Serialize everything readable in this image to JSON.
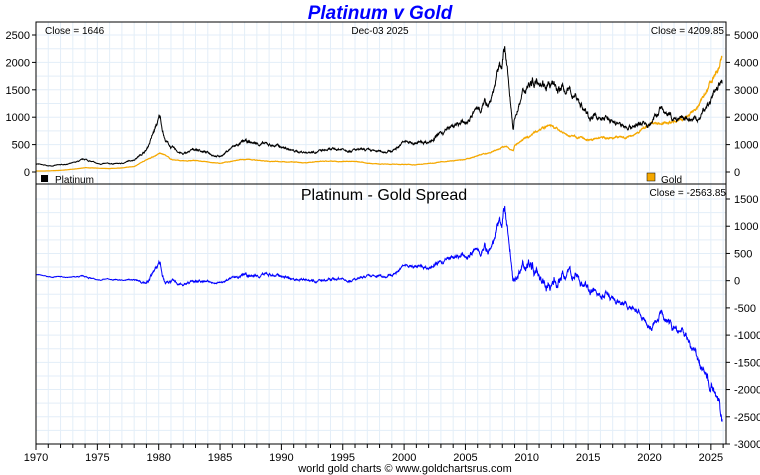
{
  "chart_data": [
    {
      "type": "line",
      "title": "Platinum v Gold",
      "date": "Dec-03  2025",
      "left_close": "Close = 1646",
      "right_close": "Close = 4209.85",
      "legend": [
        {
          "name": "Platinum",
          "color": "#000000"
        },
        {
          "name": "Gold",
          "color": "#f5a800"
        }
      ],
      "ylim_left": [
        0,
        2500
      ],
      "yticks_left": [
        0,
        500,
        1000,
        1500,
        2000,
        2500
      ],
      "ylim_right": [
        0,
        5000
      ],
      "yticks_right": [
        0,
        1000,
        2000,
        3000,
        4000,
        5000
      ],
      "series": [
        {
          "name": "Platinum",
          "axis": "left",
          "points": [
            [
              1970,
              150
            ],
            [
              1971,
              110
            ],
            [
              1972,
              130
            ],
            [
              1973,
              160
            ],
            [
              1974,
              230
            ],
            [
              1975,
              150
            ],
            [
              1976,
              150
            ],
            [
              1977,
              155
            ],
            [
              1978,
              230
            ],
            [
              1979,
              400
            ],
            [
              1980.1,
              1000
            ],
            [
              1980.5,
              600
            ],
            [
              1981,
              450
            ],
            [
              1982,
              320
            ],
            [
              1983,
              420
            ],
            [
              1984,
              350
            ],
            [
              1985,
              280
            ],
            [
              1986,
              450
            ],
            [
              1987,
              550
            ],
            [
              1988,
              520
            ],
            [
              1989,
              500
            ],
            [
              1990,
              460
            ],
            [
              1991,
              380
            ],
            [
              1992,
              360
            ],
            [
              1993,
              380
            ],
            [
              1994,
              400
            ],
            [
              1995,
              420
            ],
            [
              1996,
              400
            ],
            [
              1997,
              390
            ],
            [
              1998,
              370
            ],
            [
              1999,
              380
            ],
            [
              2000,
              550
            ],
            [
              2001,
              520
            ],
            [
              2002,
              560
            ],
            [
              2003,
              700
            ],
            [
              2004,
              830
            ],
            [
              2005,
              900
            ],
            [
              2006,
              1150
            ],
            [
              2007,
              1300
            ],
            [
              2008.2,
              2200
            ],
            [
              2008.9,
              800
            ],
            [
              2009,
              1000
            ],
            [
              2010,
              1600
            ],
            [
              2011,
              1750
            ],
            [
              2012,
              1550
            ],
            [
              2013,
              1500
            ],
            [
              2014,
              1400
            ],
            [
              2015,
              1000
            ],
            [
              2016,
              1000
            ],
            [
              2017,
              930
            ],
            [
              2018,
              820
            ],
            [
              2019,
              860
            ],
            [
              2020,
              880
            ],
            [
              2021,
              1150
            ],
            [
              2022,
              950
            ],
            [
              2023,
              950
            ],
            [
              2024,
              950
            ],
            [
              2025.92,
              1646
            ]
          ]
        },
        {
          "name": "Gold",
          "axis": "right",
          "points": [
            [
              1970,
              35
            ],
            [
              1971,
              40
            ],
            [
              1972,
              60
            ],
            [
              1973,
              100
            ],
            [
              1974,
              160
            ],
            [
              1975,
              140
            ],
            [
              1976,
              125
            ],
            [
              1977,
              150
            ],
            [
              1978,
              200
            ],
            [
              1979,
              450
            ],
            [
              1980.1,
              680
            ],
            [
              1980.5,
              620
            ],
            [
              1981,
              460
            ],
            [
              1982,
              400
            ],
            [
              1983,
              420
            ],
            [
              1984,
              360
            ],
            [
              1985,
              320
            ],
            [
              1986,
              390
            ],
            [
              1987,
              460
            ],
            [
              1988,
              430
            ],
            [
              1989,
              380
            ],
            [
              1990,
              390
            ],
            [
              1991,
              360
            ],
            [
              1992,
              340
            ],
            [
              1993,
              380
            ],
            [
              1994,
              385
            ],
            [
              1995,
              385
            ],
            [
              1996,
              390
            ],
            [
              1997,
              330
            ],
            [
              1998,
              295
            ],
            [
              1999,
              280
            ],
            [
              2000,
              280
            ],
            [
              2001,
              270
            ],
            [
              2002,
              310
            ],
            [
              2003,
              365
            ],
            [
              2004,
              410
            ],
            [
              2005,
              450
            ],
            [
              2006,
              600
            ],
            [
              2007,
              700
            ],
            [
              2008.2,
              950
            ],
            [
              2008.9,
              800
            ],
            [
              2009,
              950
            ],
            [
              2010,
              1230
            ],
            [
              2011,
              1570
            ],
            [
              2012,
              1670
            ],
            [
              2013,
              1400
            ],
            [
              2014,
              1270
            ],
            [
              2015,
              1160
            ],
            [
              2016,
              1250
            ],
            [
              2017,
              1260
            ],
            [
              2018,
              1270
            ],
            [
              2019,
              1400
            ],
            [
              2020,
              1770
            ],
            [
              2021,
              1800
            ],
            [
              2022,
              1800
            ],
            [
              2023,
              1940
            ],
            [
              2024,
              2390
            ],
            [
              2025.92,
              4209.85
            ]
          ]
        }
      ]
    },
    {
      "type": "line",
      "title": "Platinum  -  Gold Spread",
      "close": "Close = -2563.85",
      "series_name": "Spread",
      "color": "#0000ff",
      "derived": "Platinum - Gold",
      "ylim": [
        -3000,
        1500
      ],
      "yticks": [
        -3000,
        -2500,
        -2000,
        -1500,
        -1000,
        -500,
        0,
        500,
        1000,
        1500
      ]
    }
  ],
  "x_axis": {
    "xlim": [
      1970,
      2026
    ],
    "ticks": [
      1970,
      1975,
      1980,
      1985,
      1990,
      1995,
      2000,
      2005,
      2010,
      2015,
      2020,
      2025
    ]
  },
  "footer": "world gold charts © www.goldchartsrus.com"
}
